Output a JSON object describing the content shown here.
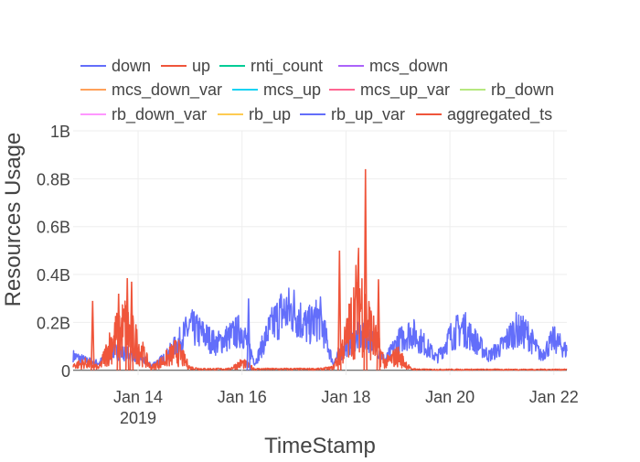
{
  "chart_data": {
    "type": "line",
    "title": "",
    "xlabel": "TimeStamp",
    "ylabel": "Resources Usage",
    "x_range": [
      "2019-01-12T18:00",
      "2019-01-22T06:00"
    ],
    "ylim": [
      -20000000,
      1000000000
    ],
    "x_ticks": [
      {
        "date": "2019-01-14",
        "label": "Jan 14",
        "sublabel": "2019"
      },
      {
        "date": "2019-01-16",
        "label": "Jan 16",
        "sublabel": ""
      },
      {
        "date": "2019-01-18",
        "label": "Jan 18",
        "sublabel": ""
      },
      {
        "date": "2019-01-20",
        "label": "Jan 20",
        "sublabel": ""
      },
      {
        "date": "2019-01-22",
        "label": "Jan 22",
        "sublabel": ""
      }
    ],
    "y_ticks": [
      {
        "value": 0,
        "label": "0"
      },
      {
        "value": 200000000,
        "label": "0.2B"
      },
      {
        "value": 400000000,
        "label": "0.4B"
      },
      {
        "value": 600000000,
        "label": "0.6B"
      },
      {
        "value": 800000000,
        "label": "0.8B"
      },
      {
        "value": 1000000000,
        "label": "1B"
      }
    ],
    "grid": true,
    "legend_position": "top",
    "series": [
      {
        "name": "down",
        "color": "#636efa",
        "x": [
          "2019-01-12T18:00",
          "2019-01-13T00:00",
          "2019-01-13T06:00",
          "2019-01-13T12:00",
          "2019-01-13T18:00",
          "2019-01-14T00:00",
          "2019-01-14T06:00",
          "2019-01-14T12:00",
          "2019-01-14T18:00",
          "2019-01-15T00:00",
          "2019-01-15T06:00",
          "2019-01-15T12:00",
          "2019-01-15T18:00",
          "2019-01-16T00:00",
          "2019-01-16T06:00",
          "2019-01-16T12:00",
          "2019-01-16T18:00",
          "2019-01-17T00:00",
          "2019-01-17T06:00",
          "2019-01-17T12:00",
          "2019-01-17T18:00",
          "2019-01-18T00:00",
          "2019-01-18T06:00",
          "2019-01-18T12:00",
          "2019-01-18T18:00",
          "2019-01-19T00:00",
          "2019-01-19T06:00",
          "2019-01-19T12:00",
          "2019-01-19T18:00",
          "2019-01-20T00:00",
          "2019-01-20T06:00",
          "2019-01-20T12:00",
          "2019-01-20T18:00",
          "2019-01-21T00:00",
          "2019-01-21T06:00",
          "2019-01-21T12:00",
          "2019-01-21T18:00",
          "2019-01-22T00:00",
          "2019-01-22T06:00"
        ],
        "values": [
          60000000,
          40000000,
          30000000,
          80000000,
          70000000,
          60000000,
          20000000,
          50000000,
          110000000,
          180000000,
          150000000,
          110000000,
          140000000,
          170000000,
          30000000,
          160000000,
          240000000,
          250000000,
          180000000,
          220000000,
          30000000,
          100000000,
          140000000,
          130000000,
          40000000,
          120000000,
          160000000,
          110000000,
          50000000,
          140000000,
          180000000,
          120000000,
          60000000,
          100000000,
          170000000,
          150000000,
          60000000,
          130000000,
          80000000
        ]
      },
      {
        "name": "up",
        "color": "#ef553b",
        "x": [
          "2019-01-12T18:00",
          "2019-01-13T00:00",
          "2019-01-13T06:00",
          "2019-01-13T12:00",
          "2019-01-13T18:00",
          "2019-01-14T00:00",
          "2019-01-14T06:00",
          "2019-01-14T12:00",
          "2019-01-14T18:00",
          "2019-01-15T00:00",
          "2019-01-15T06:00",
          "2019-01-15T12:00",
          "2019-01-15T18:00",
          "2019-01-16T00:00",
          "2019-01-16T06:00",
          "2019-01-16T12:00",
          "2019-01-16T18:00",
          "2019-01-17T00:00",
          "2019-01-17T06:00",
          "2019-01-17T12:00",
          "2019-01-17T18:00",
          "2019-01-18T00:00",
          "2019-01-18T06:00",
          "2019-01-18T12:00",
          "2019-01-18T18:00",
          "2019-01-19T00:00",
          "2019-01-19T06:00",
          "2019-01-19T12:00",
          "2019-01-19T18:00",
          "2019-01-20T00:00",
          "2019-01-20T06:00",
          "2019-01-20T12:00",
          "2019-01-20T18:00",
          "2019-01-21T00:00",
          "2019-01-21T06:00",
          "2019-01-21T12:00",
          "2019-01-21T18:00",
          "2019-01-22T00:00",
          "2019-01-22T06:00"
        ],
        "values": [
          20000000,
          30000000,
          10000000,
          120000000,
          180000000,
          100000000,
          10000000,
          40000000,
          80000000,
          10000000,
          5000000,
          5000000,
          5000000,
          30000000,
          5000000,
          5000000,
          5000000,
          5000000,
          5000000,
          5000000,
          10000000,
          120000000,
          300000000,
          150000000,
          30000000,
          60000000,
          5000000,
          3000000,
          3000000,
          3000000,
          3000000,
          3000000,
          3000000,
          3000000,
          3000000,
          3000000,
          3000000,
          3000000,
          3000000
        ]
      },
      {
        "name": "rnti_count",
        "color": "#00cc96",
        "x": [],
        "values": []
      },
      {
        "name": "mcs_down",
        "color": "#ab63fa",
        "x": [],
        "values": []
      },
      {
        "name": "mcs_down_var",
        "color": "#ffa15a",
        "x": [],
        "values": []
      },
      {
        "name": "mcs_up",
        "color": "#19d3f3",
        "x": [],
        "values": []
      },
      {
        "name": "mcs_up_var",
        "color": "#ff6692",
        "x": [],
        "values": []
      },
      {
        "name": "rb_down",
        "color": "#b6e880",
        "x": [],
        "values": []
      },
      {
        "name": "rb_down_var",
        "color": "#ff97ff",
        "x": [],
        "values": []
      },
      {
        "name": "rb_up",
        "color": "#fecb52",
        "x": [],
        "values": []
      },
      {
        "name": "rb_up_var",
        "color": "#636efa",
        "x": [],
        "values": []
      },
      {
        "name": "aggregated_ts",
        "color": "#ef553b",
        "x": [],
        "values": []
      }
    ],
    "annotations": [
      {
        "series": "up",
        "date": "2019-01-13T03:00",
        "value": 290000000
      },
      {
        "series": "up",
        "date": "2019-01-13T15:00",
        "value": 320000000
      },
      {
        "series": "up",
        "date": "2019-01-13T19:00",
        "value": 385000000
      },
      {
        "series": "up",
        "date": "2019-01-13T21:00",
        "value": 370000000
      },
      {
        "series": "up",
        "date": "2019-01-17T21:00",
        "value": 500000000
      },
      {
        "series": "up",
        "date": "2019-01-18T09:00",
        "value": 840000000
      },
      {
        "series": "up",
        "date": "2019-01-18T15:00",
        "value": 380000000
      },
      {
        "series": "down",
        "date": "2019-01-16T03:00",
        "value": 300000000
      }
    ]
  }
}
